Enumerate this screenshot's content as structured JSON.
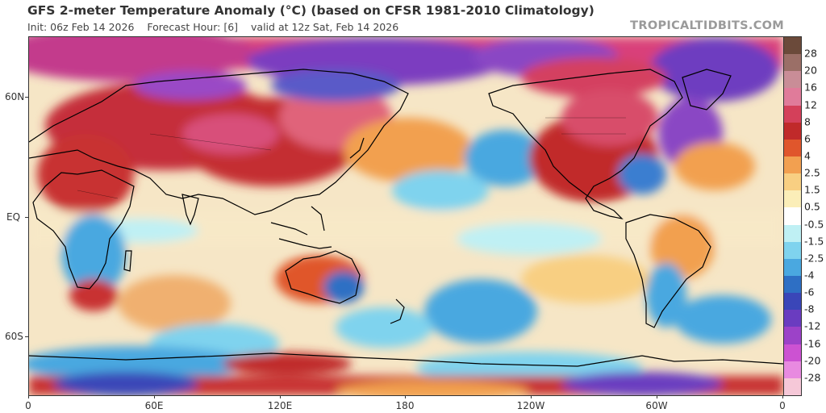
{
  "header": {
    "title": "GFS 2-meter Temperature Anomaly (°C) (based on CFSR 1981-2010 Climatology)",
    "init": "Init: 06z Feb 14 2026",
    "forecast_hour": "Forecast Hour: [6]",
    "valid": "valid at 12z Sat, Feb 14 2026",
    "brand": "TROPICALTIDBITS.COM"
  },
  "axes": {
    "y_labels": [
      "60N",
      "EQ",
      "60S"
    ],
    "x_labels": [
      "0",
      "60E",
      "120E",
      "180",
      "120W",
      "60W",
      "0"
    ]
  },
  "colorbar": {
    "labels": [
      "28",
      "20",
      "16",
      "12",
      "8",
      "6",
      "4",
      "2.5",
      "1.5",
      "0.5",
      "-0.5",
      "-1.5",
      "-2.5",
      "-4",
      "-6",
      "-8",
      "-12",
      "-16",
      "-20",
      "-28"
    ],
    "colors": [
      "#6b4a3a",
      "#9b6f67",
      "#c98d97",
      "#e07b9a",
      "#d4405a",
      "#c02a2a",
      "#e0562c",
      "#f2a050",
      "#f8cf82",
      "#fbeeb8",
      "#ffffff",
      "#bff0f4",
      "#7fd3ee",
      "#4aa8e0",
      "#2e6fc4",
      "#3a46b8",
      "#6a3cc0",
      "#9c42c8",
      "#cc52d2",
      "#e88ae0",
      "#f6c8d8"
    ]
  },
  "map": {
    "warm_color": "#c0303c",
    "cool_color": "#3a8ee0",
    "land_outline_color": "#000000"
  }
}
